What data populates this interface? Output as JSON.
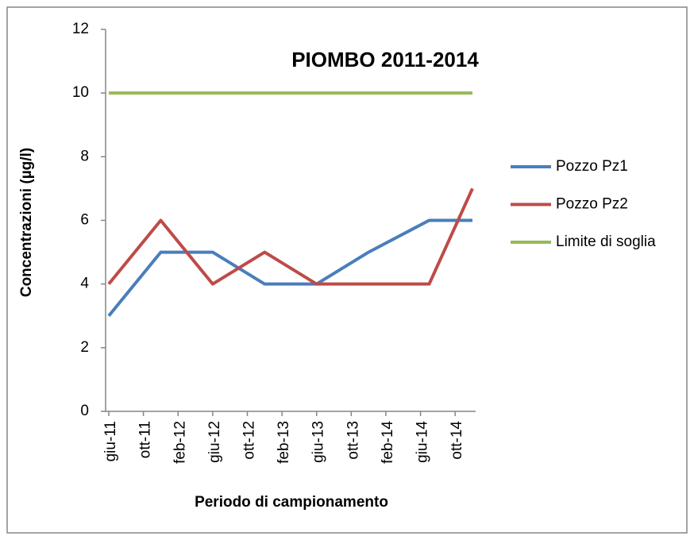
{
  "chart_data": {
    "type": "line",
    "title": "PIOMBO 2011-2014",
    "x_label": "Periodo di campionamento",
    "y_label": "Concentrazioni  (µg/l)",
    "x": [
      "2011-06",
      "2011-12",
      "2012-06",
      "2012-12",
      "2013-06",
      "2013-12",
      "2014-07",
      "2014-12"
    ],
    "series": [
      {
        "name": "Pozzo Pz1",
        "color": "#4a7ebb",
        "values": [
          3,
          5,
          5,
          4,
          4,
          5,
          6,
          6
        ]
      },
      {
        "name": "Pozzo Pz2",
        "color": "#be4b48",
        "values": [
          4,
          6,
          4,
          5,
          4,
          4,
          4,
          7
        ]
      },
      {
        "name": "Limite di soglia",
        "color": "#98b954",
        "values": [
          10,
          10,
          10,
          10,
          10,
          10,
          10,
          10
        ]
      }
    ],
    "xlim": [
      "2011-06",
      "2014-12"
    ],
    "xticks": [
      {
        "value": "2011-06",
        "label": "giu-11"
      },
      {
        "value": "2011-10",
        "label": "ott-11"
      },
      {
        "value": "2012-02",
        "label": "feb-12"
      },
      {
        "value": "2012-06",
        "label": "giu-12"
      },
      {
        "value": "2012-10",
        "label": "ott-12"
      },
      {
        "value": "2013-02",
        "label": "feb-13"
      },
      {
        "value": "2013-06",
        "label": "giu-13"
      },
      {
        "value": "2013-10",
        "label": "ott-13"
      },
      {
        "value": "2014-02",
        "label": "feb-14"
      },
      {
        "value": "2014-06",
        "label": "giu-14"
      },
      {
        "value": "2014-10",
        "label": "ott-14"
      }
    ],
    "ylim": [
      0,
      12
    ],
    "yticks": [
      0,
      2,
      4,
      6,
      8,
      10,
      12
    ],
    "legend": "right",
    "grid": false
  }
}
